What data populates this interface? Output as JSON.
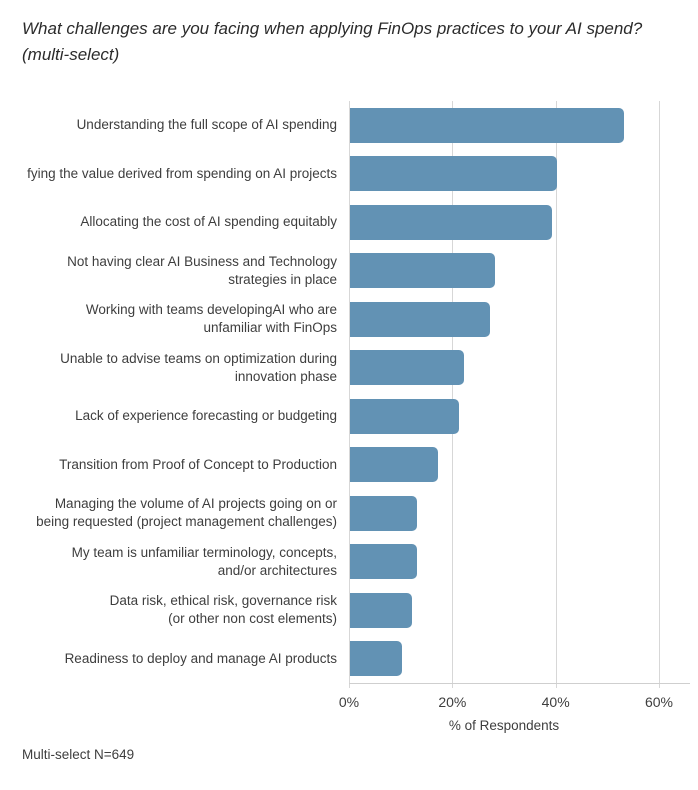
{
  "title": {
    "line1": "What challenges are you facing when applying FinOps practices to your AI spend?",
    "line2": "(multi-select)"
  },
  "footer": "Multi-select N=649",
  "chart_data": {
    "type": "bar",
    "orientation": "horizontal",
    "title": "What challenges are you facing when applying FinOps practices to your AI spend? (multi-select)",
    "categories": [
      [
        "Understanding the full scope of AI spending"
      ],
      [
        "fying the value derived from spending on AI projects"
      ],
      [
        "Allocating the cost of AI spending equitably"
      ],
      [
        "Not having clear AI Business and Technology",
        "strategies in place"
      ],
      [
        "Working with teams developingAI who are",
        "unfamiliar with FinOps"
      ],
      [
        "Unable to advise teams on optimization during",
        "innovation phase"
      ],
      [
        "Lack of experience forecasting or budgeting"
      ],
      [
        "Transition from Proof of Concept to Production"
      ],
      [
        "Managing the volume of AI projects going on or",
        "being requested (project management challenges)"
      ],
      [
        "My team is unfamiliar terminology, concepts,",
        "and/or architectures"
      ],
      [
        "Data risk, ethical risk, governance risk",
        "(or other non cost elements)"
      ],
      [
        "Readiness to deploy and manage AI products"
      ]
    ],
    "values": [
      53,
      40,
      39,
      28,
      27,
      22,
      21,
      17,
      13,
      13,
      12,
      10
    ],
    "unit": "%",
    "xlabel": "% of Respondents",
    "xticks": [
      0,
      20,
      40,
      60
    ],
    "xtick_labels": [
      "0%",
      "20%",
      "40%",
      "60%"
    ],
    "xlim": [
      0,
      66
    ],
    "grid": true,
    "legend": false,
    "bar_color": "#6292b4",
    "gridline_color": "#d7d7d7",
    "axis_color": "#cfcfcf",
    "text_color": "#3e3e3e"
  }
}
